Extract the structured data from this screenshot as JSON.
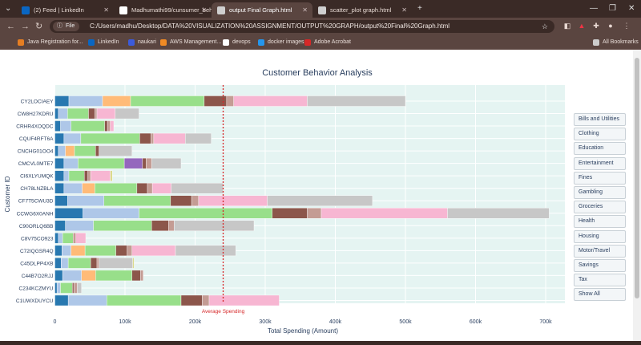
{
  "browser": {
    "tabs": [
      {
        "label": "(2) Feed | LinkedIn",
        "icon": "linkedin-icon",
        "color": "#0a66c2"
      },
      {
        "label": "Madhumathi99/cunsumer_beh",
        "icon": "github-icon",
        "color": "#ffffff"
      },
      {
        "label": "output Final Graph.html",
        "icon": "globe-icon",
        "color": "#cfcfcf",
        "active": true
      },
      {
        "label": "scatter_plot graph.html",
        "icon": "globe-icon",
        "color": "#cfcfcf"
      }
    ],
    "new_tab": "+",
    "address": {
      "chip": "File",
      "url": "C:/Users/madhu/Desktop/DATA%20VISUALIZATION%20ASSIGNMENT/OUTPUT%20GRAPH/output%20Final%20Graph.html"
    },
    "bookmarks": [
      {
        "label": "Java Registration for...",
        "color": "#e67e22"
      },
      {
        "label": "LinkedIn",
        "color": "#0a66c2"
      },
      {
        "label": "naukari",
        "color": "#3b5bdb"
      },
      {
        "label": "AWS Management...",
        "color": "#f08a24"
      },
      {
        "label": "devops",
        "color": "#ffffff"
      },
      {
        "label": "docker images",
        "color": "#2496ed"
      },
      {
        "label": "Adobe Acrobat",
        "color": "#d62828"
      }
    ],
    "all_bookmarks": "All Bookmarks"
  },
  "legend": [
    "Bills and Utilities",
    "Clothing",
    "Education",
    "Entertainment",
    "Fines",
    "Gambling",
    "Groceries",
    "Health",
    "Housing",
    "Motor/Travel",
    "Savings",
    "Tax",
    "Show All"
  ],
  "chart_data": {
    "type": "bar",
    "orientation": "horizontal",
    "stacked": true,
    "title": "Customer Behavior Analysis",
    "xlabel": "Total Spending (Amount)",
    "ylabel": "Customer ID",
    "xlim": [
      0,
      700000
    ],
    "xticks": [
      "0",
      "100k",
      "200k",
      "300k",
      "400k",
      "500k",
      "600k",
      "700k"
    ],
    "average_line": {
      "label": "Average Spending",
      "value": 240000,
      "color": "#d62728"
    },
    "segment_colors": [
      "#2878b0",
      "#aec7e8",
      "#ffbb78",
      "#98df8a",
      "#9467bd",
      "#8c564b",
      "#c49c94",
      "#f7b6d2",
      "#c7c7c7",
      "#dbdb8d"
    ],
    "categories": [
      "CY2LOCIAEY",
      "CW8H27KDRU",
      "CRHR4XOQDC",
      "CQUF4RFT6A",
      "CNCHG01OO4",
      "CMCVL0MTE7",
      "CI6XLYUMQK",
      "CH78LNZBLA",
      "CF7T5CWU3D",
      "CCWG6X0ANH",
      "C90ORLQ6BB",
      "C8V75CO923",
      "C72IQGSR4Q",
      "C45DLPP4XB",
      "C44B7O2RJJ",
      "C234KCZMYU",
      "C1UWXDUYCU"
    ],
    "rows": [
      [
        [
          0,
          20000
        ],
        [
          1,
          48000
        ],
        [
          2,
          40000
        ],
        [
          3,
          105000
        ],
        [
          5,
          32000
        ],
        [
          6,
          10000
        ],
        [
          7,
          105000
        ],
        [
          8,
          140000
        ]
      ],
      [
        [
          0,
          5000
        ],
        [
          1,
          13000
        ],
        [
          3,
          30000
        ],
        [
          5,
          9000
        ],
        [
          6,
          3000
        ],
        [
          7,
          26000
        ],
        [
          8,
          34000
        ]
      ],
      [
        [
          0,
          8000
        ],
        [
          1,
          15000
        ],
        [
          3,
          48000
        ],
        [
          5,
          4000
        ],
        [
          6,
          4000
        ],
        [
          7,
          5000
        ]
      ],
      [
        [
          0,
          13000
        ],
        [
          1,
          24000
        ],
        [
          3,
          84000
        ],
        [
          5,
          16000
        ],
        [
          6,
          4000
        ],
        [
          7,
          45000
        ],
        [
          8,
          37000
        ]
      ],
      [
        [
          0,
          5000
        ],
        [
          1,
          10000
        ],
        [
          2,
          13000
        ],
        [
          3,
          30000
        ],
        [
          5,
          5000
        ],
        [
          8,
          47000
        ]
      ],
      [
        [
          0,
          13000
        ],
        [
          1,
          20000
        ],
        [
          3,
          66000
        ],
        [
          4,
          26000
        ],
        [
          5,
          5000
        ],
        [
          6,
          8000
        ],
        [
          8,
          42000
        ]
      ],
      [
        [
          0,
          13000
        ],
        [
          1,
          7000
        ],
        [
          3,
          22000
        ],
        [
          5,
          5000
        ],
        [
          6,
          4000
        ],
        [
          7,
          28000
        ],
        [
          9,
          3000
        ]
      ],
      [
        [
          0,
          13000
        ],
        [
          1,
          26000
        ],
        [
          2,
          18000
        ],
        [
          3,
          60000
        ],
        [
          5,
          15000
        ],
        [
          6,
          7000
        ],
        [
          7,
          27000
        ],
        [
          8,
          74000
        ]
      ],
      [
        [
          0,
          18000
        ],
        [
          1,
          52000
        ],
        [
          3,
          95000
        ],
        [
          5,
          30000
        ],
        [
          6,
          10000
        ],
        [
          7,
          98000
        ],
        [
          8,
          150000
        ]
      ],
      [
        [
          0,
          40000
        ],
        [
          1,
          80000
        ],
        [
          3,
          190000
        ],
        [
          5,
          50000
        ],
        [
          6,
          20000
        ],
        [
          7,
          180000
        ],
        [
          8,
          145000
        ]
      ],
      [
        [
          0,
          15000
        ],
        [
          1,
          40000
        ],
        [
          3,
          83000
        ],
        [
          5,
          24000
        ],
        [
          6,
          8000
        ],
        [
          8,
          114000
        ]
      ],
      [
        [
          0,
          5000
        ],
        [
          1,
          6000
        ],
        [
          3,
          15000
        ],
        [
          6,
          4000
        ],
        [
          7,
          14000
        ]
      ],
      [
        [
          0,
          10000
        ],
        [
          1,
          13000
        ],
        [
          2,
          20000
        ],
        [
          3,
          44000
        ],
        [
          5,
          16000
        ],
        [
          6,
          7000
        ],
        [
          7,
          62000
        ],
        [
          8,
          86000
        ]
      ],
      [
        [
          0,
          9000
        ],
        [
          1,
          10000
        ],
        [
          3,
          32000
        ],
        [
          5,
          9000
        ],
        [
          6,
          3000
        ],
        [
          8,
          48000
        ],
        [
          9,
          2000
        ]
      ],
      [
        [
          0,
          11000
        ],
        [
          1,
          27000
        ],
        [
          2,
          20000
        ],
        [
          3,
          52000
        ],
        [
          5,
          12000
        ],
        [
          6,
          4000
        ]
      ],
      [
        [
          0,
          3000
        ],
        [
          1,
          5000
        ],
        [
          3,
          17000
        ],
        [
          5,
          2000
        ],
        [
          6,
          5000
        ],
        [
          8,
          6000
        ]
      ],
      [
        [
          0,
          19000
        ],
        [
          1,
          55000
        ],
        [
          3,
          106000
        ],
        [
          5,
          30000
        ],
        [
          6,
          10000
        ],
        [
          7,
          100000
        ]
      ]
    ]
  }
}
